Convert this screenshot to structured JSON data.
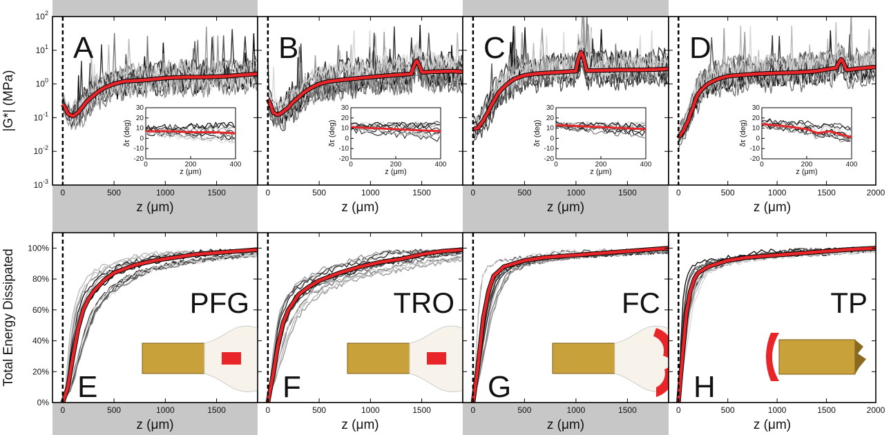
{
  "figure": {
    "top_ylabel": "|G*| (MPa)",
    "bottom_ylabel": "Total Energy Dissipated",
    "xlabel": "z (μm)",
    "inset_xlabel": "z (μm)",
    "inset_ylabel": "δτ (deg)",
    "colors": {
      "mean_line": "#e8262a",
      "shade": "#c7c7c7",
      "traces": [
        "#111111",
        "#333333",
        "#555555",
        "#777777",
        "#999999",
        "#bbbbbb",
        "#d9d9d9"
      ]
    }
  },
  "chart_data": [
    {
      "type": "line",
      "panel": "A",
      "letter": "A",
      "row": "top",
      "shaded": true,
      "yscale": "log",
      "xlim": [
        -100,
        1900
      ],
      "ylim": [
        0.001,
        100
      ],
      "xticks": [
        "0",
        "500",
        "1000",
        "1500"
      ],
      "yticks": [
        "10^-3",
        "10^-2",
        "10^-1",
        "10^0",
        "10^1",
        "10^2"
      ],
      "mean": {
        "x": [
          0,
          50,
          100,
          150,
          200,
          300,
          400,
          500,
          600,
          800,
          1000,
          1200,
          1400,
          1600,
          1800,
          1900
        ],
        "y": [
          0.25,
          0.13,
          0.11,
          0.14,
          0.22,
          0.45,
          0.75,
          1.0,
          1.2,
          1.3,
          1.5,
          1.6,
          1.6,
          1.7,
          1.9,
          2.0
        ]
      },
      "inset": {
        "xlim": [
          0,
          400
        ],
        "ylim": [
          -20,
          30
        ],
        "xticks": [
          "0",
          "200",
          "400"
        ],
        "yticks": [
          "-20",
          "-10",
          "0",
          "10",
          "20",
          "30"
        ],
        "mean": {
          "x": [
            0,
            100,
            200,
            300,
            400
          ],
          "y": [
            7,
            7,
            6,
            6,
            5
          ]
        }
      }
    },
    {
      "type": "line",
      "panel": "B",
      "letter": "B",
      "row": "top",
      "shaded": false,
      "yscale": "log",
      "xlim": [
        -100,
        1900
      ],
      "ylim": [
        0.001,
        100
      ],
      "xticks": [
        "0",
        "500",
        "1000",
        "1500"
      ],
      "yticks": [],
      "mean": {
        "x": [
          0,
          50,
          100,
          150,
          200,
          300,
          400,
          500,
          600,
          800,
          1000,
          1200,
          1400,
          1450,
          1500,
          1600,
          1800,
          1900
        ],
        "y": [
          0.35,
          0.14,
          0.12,
          0.15,
          0.2,
          0.4,
          0.7,
          1.0,
          1.2,
          1.4,
          1.6,
          1.8,
          2.0,
          5.0,
          2.2,
          2.3,
          2.4,
          2.3
        ]
      },
      "inset": {
        "xlim": [
          0,
          400
        ],
        "ylim": [
          -20,
          30
        ],
        "xticks": [
          "0",
          "200",
          "400"
        ],
        "yticks": [
          "-20",
          "-10",
          "0",
          "10",
          "20",
          "30"
        ],
        "mean": {
          "x": [
            0,
            100,
            200,
            300,
            400
          ],
          "y": [
            11,
            10,
            9,
            8,
            7
          ]
        }
      }
    },
    {
      "type": "line",
      "panel": "C",
      "letter": "C",
      "row": "top",
      "shaded": true,
      "yscale": "log",
      "xlim": [
        -100,
        1900
      ],
      "ylim": [
        0.001,
        100
      ],
      "xticks": [
        "0",
        "500",
        "1000",
        "1500"
      ],
      "yticks": [],
      "mean": {
        "x": [
          0,
          50,
          100,
          150,
          200,
          300,
          400,
          500,
          600,
          800,
          1000,
          1050,
          1100,
          1200,
          1400,
          1600,
          1800,
          1900
        ],
        "y": [
          0.045,
          0.05,
          0.08,
          0.15,
          0.3,
          0.8,
          1.4,
          1.8,
          2.0,
          2.2,
          2.4,
          9.0,
          2.5,
          2.5,
          2.6,
          2.6,
          2.7,
          2.8
        ]
      },
      "inset": {
        "xlim": [
          0,
          400
        ],
        "ylim": [
          -20,
          30
        ],
        "xticks": [
          "0",
          "200",
          "400"
        ],
        "yticks": [
          "-20",
          "-10",
          "0",
          "10",
          "20",
          "30"
        ],
        "mean": {
          "x": [
            0,
            100,
            200,
            300,
            400
          ],
          "y": [
            13,
            12,
            11,
            10,
            9
          ]
        }
      }
    },
    {
      "type": "line",
      "panel": "D",
      "letter": "D",
      "row": "top",
      "shaded": false,
      "yscale": "log",
      "xlim": [
        -100,
        2000
      ],
      "ylim": [
        0.001,
        100
      ],
      "xticks": [
        "0",
        "500",
        "1000",
        "1500",
        "2000"
      ],
      "yticks": [],
      "mean": {
        "x": [
          0,
          50,
          100,
          150,
          200,
          300,
          400,
          500,
          600,
          800,
          1000,
          1200,
          1400,
          1600,
          1650,
          1700,
          1800,
          2000
        ],
        "y": [
          0.025,
          0.04,
          0.08,
          0.2,
          0.5,
          1.0,
          1.4,
          1.7,
          1.8,
          2.0,
          2.1,
          2.2,
          2.4,
          3.0,
          5.5,
          2.6,
          2.8,
          3.2
        ]
      },
      "inset": {
        "xlim": [
          0,
          400
        ],
        "ylim": [
          -20,
          30
        ],
        "xticks": [
          "0",
          "200",
          "400"
        ],
        "yticks": [
          "-20",
          "-10",
          "0",
          "10",
          "20",
          "30"
        ],
        "mean": {
          "x": [
            0,
            100,
            200,
            250,
            300,
            400
          ],
          "y": [
            14,
            12,
            9,
            5,
            7,
            1
          ]
        }
      }
    },
    {
      "type": "line",
      "panel": "E",
      "letter": "E",
      "row": "bottom",
      "shaded": true,
      "label": "PFG",
      "xlim": [
        -100,
        1900
      ],
      "ylim": [
        0,
        110
      ],
      "xticks": [
        "0",
        "500",
        "1000",
        "1500"
      ],
      "yticks": [
        "0%",
        "20%",
        "40%",
        "60%",
        "80%",
        "100%"
      ],
      "mean": {
        "x": [
          0,
          50,
          100,
          150,
          200,
          250,
          300,
          400,
          500,
          700,
          900,
          1100,
          1300,
          1500,
          1700,
          1900
        ],
        "y": [
          0,
          10,
          30,
          48,
          60,
          67,
          72,
          79,
          84,
          89,
          92,
          94,
          96,
          97,
          98,
          99
        ]
      }
    },
    {
      "type": "line",
      "panel": "F",
      "letter": "F",
      "row": "bottom",
      "shaded": false,
      "label": "TRO",
      "xlim": [
        -100,
        1900
      ],
      "ylim": [
        0,
        110
      ],
      "xticks": [
        "0",
        "500",
        "1000",
        "1500"
      ],
      "yticks": [],
      "mean": {
        "x": [
          0,
          50,
          100,
          150,
          200,
          300,
          400,
          500,
          700,
          900,
          1100,
          1300,
          1500,
          1700,
          1900
        ],
        "y": [
          0,
          18,
          38,
          52,
          60,
          70,
          75,
          79,
          84,
          88,
          91,
          93,
          96,
          98,
          99
        ]
      }
    },
    {
      "type": "line",
      "panel": "G",
      "letter": "G",
      "row": "bottom",
      "shaded": true,
      "label": "FC",
      "xlim": [
        -100,
        1900
      ],
      "ylim": [
        0,
        110
      ],
      "xticks": [
        "0",
        "500",
        "1000",
        "1500"
      ],
      "yticks": [],
      "mean": {
        "x": [
          0,
          50,
          100,
          150,
          200,
          300,
          400,
          500,
          700,
          900,
          1100,
          1300,
          1500,
          1700,
          1900
        ],
        "y": [
          0,
          25,
          55,
          72,
          82,
          88,
          90,
          92,
          94,
          95,
          96,
          97,
          98,
          99,
          100
        ]
      }
    },
    {
      "type": "line",
      "panel": "H",
      "letter": "H",
      "row": "bottom",
      "shaded": false,
      "label": "TP",
      "xlim": [
        -100,
        2000
      ],
      "ylim": [
        0,
        110
      ],
      "xticks": [
        "0",
        "500",
        "1000",
        "1500",
        "2000"
      ],
      "yticks": [],
      "mean": {
        "x": [
          0,
          40,
          80,
          120,
          160,
          200,
          300,
          400,
          500,
          700,
          900,
          1100,
          1300,
          1500,
          1700,
          2000
        ],
        "y": [
          0,
          30,
          58,
          72,
          80,
          84,
          88,
          90,
          92,
          94,
          95,
          96,
          97,
          98,
          99,
          100
        ]
      }
    }
  ]
}
